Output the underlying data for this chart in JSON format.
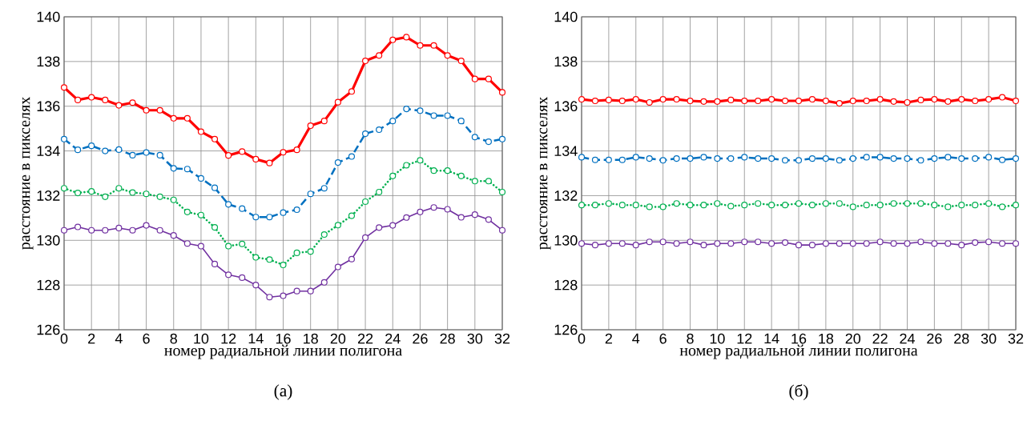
{
  "chart_data": [
    {
      "type": "line",
      "xlabel": "номер радиальной линии полигона",
      "ylabel": "расстояние в пикселях",
      "annotations": [
        "(а)"
      ],
      "x": [
        0,
        1,
        2,
        3,
        4,
        5,
        6,
        7,
        8,
        9,
        10,
        11,
        12,
        13,
        14,
        15,
        16,
        17,
        18,
        19,
        20,
        21,
        22,
        23,
        24,
        25,
        26,
        27,
        28,
        29,
        30,
        31,
        32
      ],
      "xlim": [
        0,
        32
      ],
      "xticks": [
        0,
        2,
        4,
        6,
        8,
        10,
        12,
        14,
        16,
        18,
        20,
        22,
        24,
        26,
        28,
        30,
        32
      ],
      "ylim": [
        126,
        140
      ],
      "yticks": [
        126,
        128,
        130,
        132,
        134,
        136,
        138,
        140
      ],
      "grid": true,
      "marker": "circle",
      "series": [
        {
          "color": "#ff0000",
          "line_style": "solid",
          "values": [
            136.84,
            136.28,
            136.4,
            136.28,
            136.04,
            136.16,
            135.82,
            135.82,
            135.46,
            135.46,
            134.86,
            134.53,
            133.8,
            133.97,
            133.63,
            133.46,
            133.94,
            134.05,
            135.13,
            135.34,
            136.18,
            136.66,
            138.03,
            138.27,
            138.97,
            139.09,
            138.72,
            138.72,
            138.27,
            138.03,
            137.22,
            137.22,
            136.62
          ]
        },
        {
          "color": "#0070c0",
          "line_style": "dashed",
          "values": [
            134.53,
            134.05,
            134.23,
            134.0,
            134.06,
            133.81,
            133.93,
            133.81,
            133.22,
            133.19,
            132.77,
            132.35,
            131.61,
            131.42,
            131.04,
            131.04,
            131.24,
            131.37,
            132.08,
            132.33,
            133.48,
            133.75,
            134.77,
            134.95,
            135.34,
            135.88,
            135.8,
            135.58,
            135.58,
            135.34,
            134.62,
            134.41,
            134.53
          ]
        },
        {
          "color": "#00b050",
          "line_style": "dotted",
          "values": [
            132.33,
            132.12,
            132.19,
            131.95,
            132.33,
            132.14,
            132.08,
            131.95,
            131.81,
            131.27,
            131.13,
            130.58,
            129.74,
            129.84,
            129.24,
            129.14,
            128.9,
            129.44,
            129.5,
            130.26,
            130.68,
            131.1,
            131.73,
            132.16,
            132.88,
            133.36,
            133.58,
            133.12,
            133.12,
            132.88,
            132.65,
            132.65,
            132.16
          ]
        },
        {
          "color": "#7030a0",
          "line_style": "solid",
          "values": [
            130.45,
            130.6,
            130.45,
            130.45,
            130.55,
            130.45,
            130.67,
            130.45,
            130.22,
            129.86,
            129.74,
            128.94,
            128.46,
            128.33,
            128.0,
            127.46,
            127.52,
            127.73,
            127.73,
            128.12,
            128.81,
            129.16,
            130.12,
            130.57,
            130.67,
            131.02,
            131.27,
            131.47,
            131.39,
            131.03,
            131.15,
            130.93,
            130.45
          ]
        }
      ]
    },
    {
      "type": "line",
      "xlabel": "номер радиальной линии полигона",
      "ylabel": "расстояние в пикселях",
      "annotations": [
        "(б)"
      ],
      "x": [
        0,
        1,
        2,
        3,
        4,
        5,
        6,
        7,
        8,
        9,
        10,
        11,
        12,
        13,
        14,
        15,
        16,
        17,
        18,
        19,
        20,
        21,
        22,
        23,
        24,
        25,
        26,
        27,
        28,
        29,
        30,
        31,
        32
      ],
      "xlim": [
        0,
        32
      ],
      "xticks": [
        0,
        2,
        4,
        6,
        8,
        10,
        12,
        14,
        16,
        18,
        20,
        22,
        24,
        26,
        28,
        30,
        32
      ],
      "ylim": [
        126,
        140
      ],
      "yticks": [
        126,
        128,
        130,
        132,
        134,
        136,
        138,
        140
      ],
      "grid": true,
      "marker": "circle",
      "series": [
        {
          "color": "#ff0000",
          "line_style": "solid",
          "values": [
            136.31,
            136.24,
            136.28,
            136.24,
            136.31,
            136.17,
            136.31,
            136.31,
            136.24,
            136.21,
            136.21,
            136.28,
            136.24,
            136.24,
            136.31,
            136.24,
            136.24,
            136.31,
            136.24,
            136.13,
            136.24,
            136.24,
            136.31,
            136.21,
            136.17,
            136.28,
            136.31,
            136.21,
            136.31,
            136.24,
            136.31,
            136.4,
            136.24
          ]
        },
        {
          "color": "#0070c0",
          "line_style": "dashed",
          "values": [
            133.72,
            133.6,
            133.6,
            133.6,
            133.72,
            133.66,
            133.58,
            133.66,
            133.66,
            133.72,
            133.66,
            133.66,
            133.72,
            133.66,
            133.66,
            133.58,
            133.58,
            133.66,
            133.66,
            133.58,
            133.66,
            133.72,
            133.72,
            133.66,
            133.66,
            133.58,
            133.66,
            133.72,
            133.66,
            133.66,
            133.72,
            133.6,
            133.66
          ]
        },
        {
          "color": "#00b050",
          "line_style": "dotted",
          "values": [
            131.58,
            131.58,
            131.65,
            131.58,
            131.58,
            131.5,
            131.5,
            131.65,
            131.58,
            131.58,
            131.65,
            131.53,
            131.58,
            131.65,
            131.58,
            131.58,
            131.65,
            131.58,
            131.65,
            131.65,
            131.5,
            131.58,
            131.58,
            131.65,
            131.65,
            131.65,
            131.58,
            131.5,
            131.58,
            131.58,
            131.65,
            131.5,
            131.58
          ]
        },
        {
          "color": "#7030a0",
          "line_style": "solid",
          "values": [
            129.86,
            129.79,
            129.86,
            129.86,
            129.79,
            129.93,
            129.93,
            129.86,
            129.93,
            129.79,
            129.86,
            129.86,
            129.93,
            129.93,
            129.86,
            129.9,
            129.79,
            129.79,
            129.86,
            129.86,
            129.86,
            129.86,
            129.93,
            129.86,
            129.86,
            129.93,
            129.86,
            129.86,
            129.79,
            129.9,
            129.93,
            129.86,
            129.86
          ]
        }
      ]
    }
  ]
}
